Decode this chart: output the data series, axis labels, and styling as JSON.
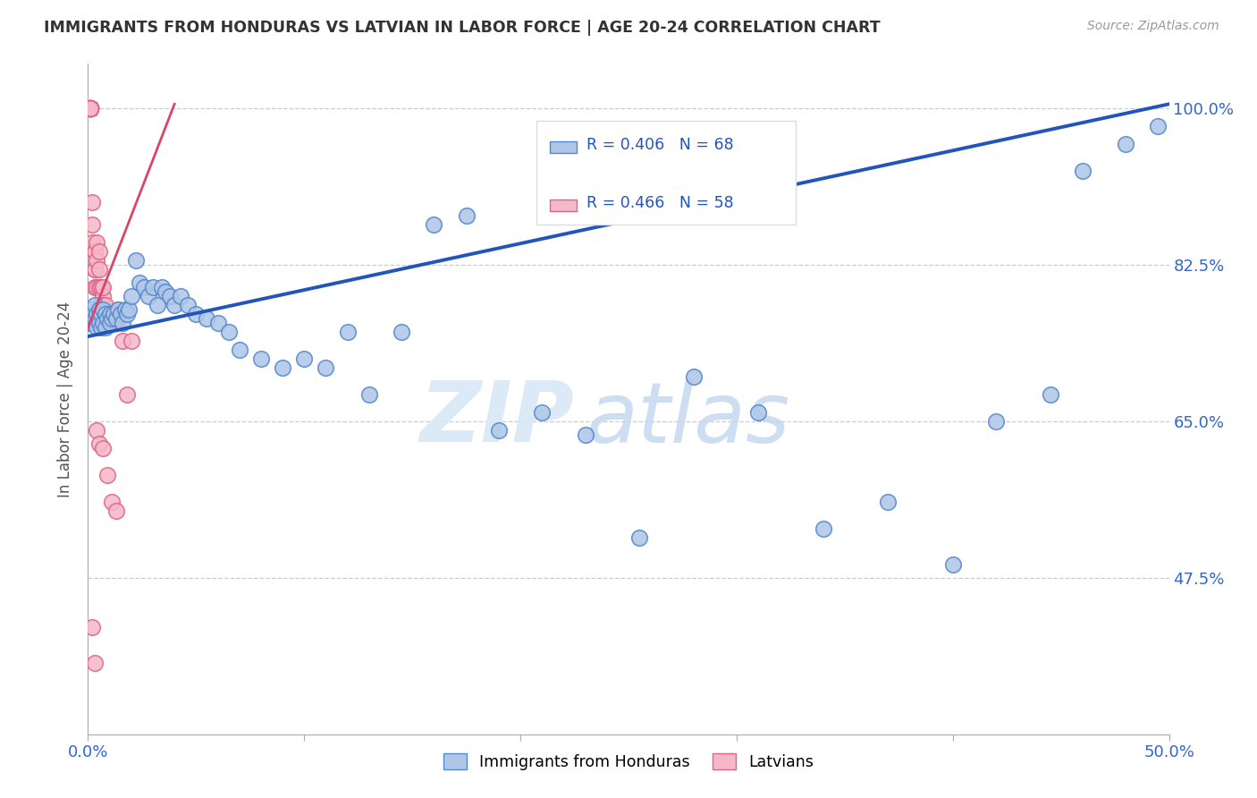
{
  "title": "IMMIGRANTS FROM HONDURAS VS LATVIAN IN LABOR FORCE | AGE 20-24 CORRELATION CHART",
  "source": "Source: ZipAtlas.com",
  "ylabel": "In Labor Force | Age 20-24",
  "x_min": 0.0,
  "x_max": 0.5,
  "y_min": 0.3,
  "y_max": 1.05,
  "x_ticks": [
    0.0,
    0.1,
    0.2,
    0.3,
    0.4,
    0.5
  ],
  "x_tick_labels": [
    "0.0%",
    "",
    "",
    "",
    "",
    "50.0%"
  ],
  "y_ticks": [
    0.475,
    0.65,
    0.825,
    1.0
  ],
  "y_tick_labels": [
    "47.5%",
    "65.0%",
    "82.5%",
    "100.0%"
  ],
  "blue_R": 0.406,
  "blue_N": 68,
  "pink_R": 0.466,
  "pink_N": 58,
  "blue_color": "#aec6e8",
  "blue_edge": "#5588cc",
  "blue_line_color": "#2255bb",
  "pink_color": "#f5b8c8",
  "pink_edge": "#dd6688",
  "pink_line_color": "#dd4466",
  "watermark_zip": "ZIP",
  "watermark_atlas": "atlas",
  "legend_label_blue": "Immigrants from Honduras",
  "legend_label_pink": "Latvians",
  "blue_line_x0": 0.0,
  "blue_line_y0": 0.745,
  "blue_line_x1": 0.5,
  "blue_line_y1": 1.005,
  "pink_line_x0": 0.0,
  "pink_line_y0": 0.755,
  "pink_line_x1": 0.04,
  "pink_line_y1": 1.005,
  "blue_x": [
    0.001,
    0.002,
    0.002,
    0.003,
    0.003,
    0.004,
    0.004,
    0.005,
    0.005,
    0.006,
    0.006,
    0.007,
    0.007,
    0.008,
    0.008,
    0.009,
    0.01,
    0.01,
    0.011,
    0.012,
    0.013,
    0.014,
    0.015,
    0.016,
    0.017,
    0.018,
    0.019,
    0.02,
    0.022,
    0.024,
    0.026,
    0.028,
    0.03,
    0.032,
    0.034,
    0.036,
    0.038,
    0.04,
    0.043,
    0.046,
    0.05,
    0.055,
    0.06,
    0.065,
    0.07,
    0.08,
    0.09,
    0.1,
    0.11,
    0.12,
    0.13,
    0.145,
    0.16,
    0.175,
    0.19,
    0.21,
    0.23,
    0.255,
    0.28,
    0.31,
    0.34,
    0.37,
    0.4,
    0.42,
    0.445,
    0.46,
    0.48,
    0.495
  ],
  "blue_y": [
    0.76,
    0.775,
    0.76,
    0.78,
    0.765,
    0.77,
    0.755,
    0.775,
    0.76,
    0.77,
    0.755,
    0.775,
    0.76,
    0.77,
    0.755,
    0.765,
    0.77,
    0.76,
    0.765,
    0.77,
    0.765,
    0.775,
    0.77,
    0.76,
    0.775,
    0.77,
    0.775,
    0.79,
    0.83,
    0.805,
    0.8,
    0.79,
    0.8,
    0.78,
    0.8,
    0.795,
    0.79,
    0.78,
    0.79,
    0.78,
    0.77,
    0.765,
    0.76,
    0.75,
    0.73,
    0.72,
    0.71,
    0.72,
    0.71,
    0.75,
    0.68,
    0.75,
    0.87,
    0.88,
    0.64,
    0.66,
    0.635,
    0.52,
    0.7,
    0.66,
    0.53,
    0.56,
    0.49,
    0.65,
    0.68,
    0.93,
    0.96,
    0.98
  ],
  "pink_x": [
    0.001,
    0.001,
    0.001,
    0.001,
    0.001,
    0.001,
    0.001,
    0.001,
    0.001,
    0.001,
    0.001,
    0.001,
    0.001,
    0.001,
    0.001,
    0.001,
    0.001,
    0.001,
    0.001,
    0.001,
    0.002,
    0.002,
    0.002,
    0.003,
    0.003,
    0.003,
    0.003,
    0.003,
    0.004,
    0.004,
    0.004,
    0.005,
    0.005,
    0.005,
    0.006,
    0.006,
    0.007,
    0.007,
    0.007,
    0.008,
    0.008,
    0.009,
    0.01,
    0.011,
    0.012,
    0.013,
    0.014,
    0.016,
    0.018,
    0.02,
    0.002,
    0.003,
    0.004,
    0.005,
    0.007,
    0.009,
    0.011,
    0.013
  ],
  "pink_y": [
    1.0,
    1.0,
    1.0,
    1.0,
    1.0,
    1.0,
    1.0,
    1.0,
    1.0,
    1.0,
    1.0,
    1.0,
    1.0,
    1.0,
    1.0,
    1.0,
    1.0,
    1.0,
    1.0,
    1.0,
    0.895,
    0.87,
    0.85,
    0.84,
    0.82,
    0.8,
    0.84,
    0.82,
    0.85,
    0.83,
    0.8,
    0.82,
    0.8,
    0.84,
    0.78,
    0.8,
    0.79,
    0.78,
    0.8,
    0.76,
    0.78,
    0.77,
    0.77,
    0.77,
    0.77,
    0.76,
    0.775,
    0.74,
    0.68,
    0.74,
    0.42,
    0.38,
    0.64,
    0.625,
    0.62,
    0.59,
    0.56,
    0.55
  ]
}
